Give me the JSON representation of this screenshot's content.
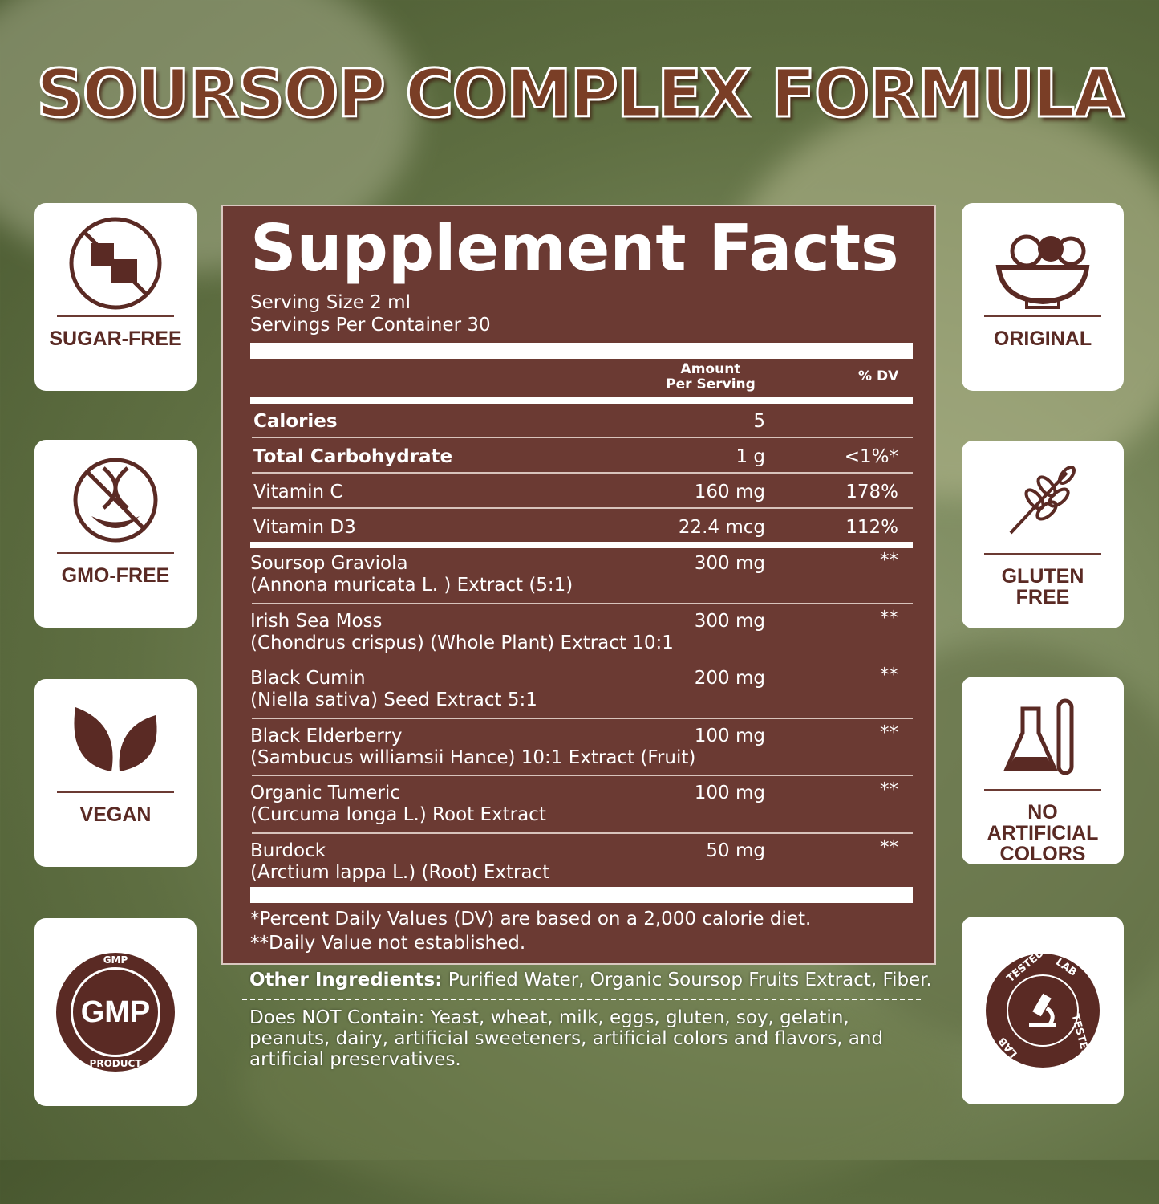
{
  "title": "SOURSOP COMPLEX FORMULA",
  "colors": {
    "panel": "#6b3a33",
    "accent": "#5a2a24",
    "title": "#7a3e26"
  },
  "left_badges": [
    {
      "label": "SUGAR-FREE",
      "icon": "no-sugar-cubes-icon"
    },
    {
      "label": "GMO-FREE",
      "icon": "no-gmo-dna-icon"
    },
    {
      "label": "VEGAN",
      "icon": "leaves-icon"
    },
    {
      "label": "",
      "icon": "gmp-seal-icon",
      "seal_text": [
        "GMP",
        "GMP",
        "PRODUCT"
      ]
    }
  ],
  "right_badges": [
    {
      "label": "ORIGINAL",
      "icon": "fruit-bowl-icon"
    },
    {
      "label": "GLUTEN\nFREE",
      "icon": "wheat-icon"
    },
    {
      "label": "NO\nARTIFICIAL\nCOLORS",
      "icon": "lab-flask-icon"
    },
    {
      "label": "",
      "icon": "lab-tested-seal-icon",
      "seal_text": [
        "LAB",
        "TESTED",
        "LAB",
        "TESTED"
      ]
    }
  ],
  "facts": {
    "heading": "Supplement Facts",
    "serving_size": "Serving Size 2 ml",
    "servings_per_container": "Servings Per Container 30",
    "col_amount": [
      "Amount",
      "Per Serving"
    ],
    "col_dv": "% DV",
    "nutrients": [
      {
        "name": "Calories",
        "amount": "5",
        "dv": "",
        "bold": true
      },
      {
        "name": "Total Carbohydrate",
        "amount": "1 g",
        "dv": "<1%*",
        "bold": true
      },
      {
        "name": "Vitamin  C",
        "amount": "160 mg",
        "dv": "178%"
      },
      {
        "name": "Vitamin  D3",
        "amount": "22.4 mcg",
        "dv": "112%"
      }
    ],
    "ingredients": [
      {
        "name": "Soursop Graviola",
        "detail": "(Annona muricata L. ) Extract (5:1)",
        "amount": "300 mg",
        "dv": "**"
      },
      {
        "name": "Irish Sea Moss",
        "detail": "(Chondrus crispus) (Whole Plant) Extract 10:1",
        "amount": "300 mg",
        "dv": "**"
      },
      {
        "name": "Black Cumin",
        "detail": "(Niella sativa) Seed Extract 5:1",
        "amount": "200 mg",
        "dv": "**"
      },
      {
        "name": "Black Elderberry",
        "detail": "(Sambucus williamsii Hance) 10:1 Extract (Fruit)",
        "amount": "100 mg",
        "dv": "**"
      },
      {
        "name": "Organic Tumeric",
        "detail": "(Curcuma longa L.) Root Extract",
        "amount": "100 mg",
        "dv": "**"
      },
      {
        "name": "Burdock",
        "detail": "(Arctium lappa L.) (Root) Extract",
        "amount": "50 mg",
        "dv": "**"
      }
    ],
    "footnote1": "*Percent Daily Values (DV) are based on a 2,000 calorie diet.",
    "footnote2": "**Daily Value not established."
  },
  "other_ingredients": {
    "label": "Other Ingredients:",
    "text": " Purified Water, Organic Soursop Fruits Extract, Fiber."
  },
  "does_not_contain": "Does NOT Contain: Yeast, wheat, milk, eggs, gluten, soy, gelatin, peanuts, dairy, artificial sweeteners, artificial colors and flavors, and artificial preservatives."
}
